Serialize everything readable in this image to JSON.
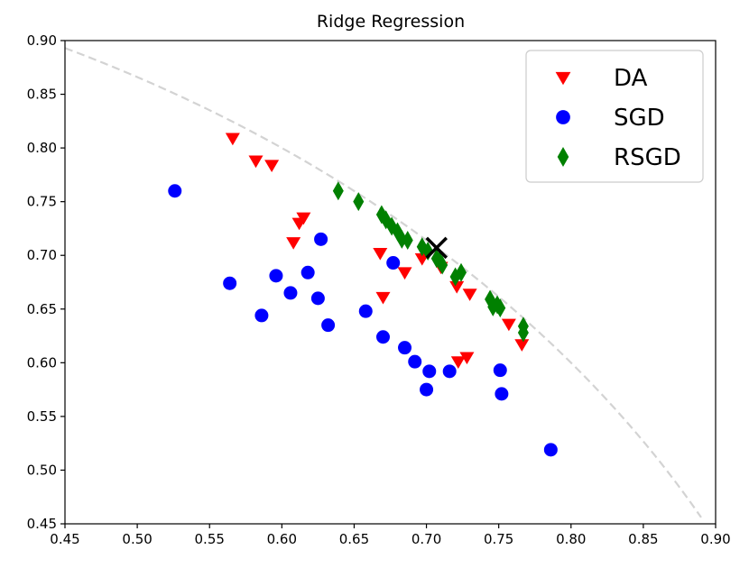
{
  "chart_data": {
    "type": "scatter",
    "title": "Ridge Regression",
    "xlabel": "",
    "ylabel": "",
    "xlim": [
      0.45,
      0.9
    ],
    "ylim": [
      0.45,
      0.9
    ],
    "x_ticks": [
      "0.45",
      "0.50",
      "0.55",
      "0.60",
      "0.65",
      "0.70",
      "0.75",
      "0.80",
      "0.85",
      "0.90"
    ],
    "y_ticks": [
      "0.45",
      "0.50",
      "0.55",
      "0.60",
      "0.65",
      "0.70",
      "0.75",
      "0.80",
      "0.85",
      "0.90"
    ],
    "x_tick_values": [
      0.45,
      0.5,
      0.55,
      0.6,
      0.65,
      0.7,
      0.75,
      0.8,
      0.85,
      0.9
    ],
    "y_tick_values": [
      0.45,
      0.5,
      0.55,
      0.6,
      0.65,
      0.7,
      0.75,
      0.8,
      0.85,
      0.9
    ],
    "legend_position": "top-right",
    "frontier_curve": {
      "name": "frontier",
      "style": "dashed",
      "color": "#d3d3d3",
      "radius": 1.0,
      "x_range": [
        0.45,
        0.89
      ]
    },
    "optimum_marker": {
      "name": "optimum",
      "marker": "x",
      "color": "#000000",
      "x": 0.707,
      "y": 0.707
    },
    "series": [
      {
        "name": "DA",
        "marker": "triangle-down",
        "color": "#ff0000",
        "points": [
          [
            0.566,
            0.809
          ],
          [
            0.582,
            0.788
          ],
          [
            0.593,
            0.784
          ],
          [
            0.615,
            0.735
          ],
          [
            0.612,
            0.73
          ],
          [
            0.608,
            0.712
          ],
          [
            0.668,
            0.702
          ],
          [
            0.67,
            0.661
          ],
          [
            0.685,
            0.684
          ],
          [
            0.697,
            0.697
          ],
          [
            0.71,
            0.689
          ],
          [
            0.721,
            0.671
          ],
          [
            0.73,
            0.664
          ],
          [
            0.722,
            0.601
          ],
          [
            0.728,
            0.605
          ],
          [
            0.757,
            0.636
          ],
          [
            0.766,
            0.617
          ]
        ]
      },
      {
        "name": "SGD",
        "marker": "circle",
        "color": "#0000ff",
        "points": [
          [
            0.526,
            0.76
          ],
          [
            0.564,
            0.674
          ],
          [
            0.586,
            0.644
          ],
          [
            0.596,
            0.681
          ],
          [
            0.606,
            0.665
          ],
          [
            0.618,
            0.684
          ],
          [
            0.625,
            0.66
          ],
          [
            0.627,
            0.715
          ],
          [
            0.632,
            0.635
          ],
          [
            0.658,
            0.648
          ],
          [
            0.67,
            0.624
          ],
          [
            0.677,
            0.693
          ],
          [
            0.685,
            0.614
          ],
          [
            0.692,
            0.601
          ],
          [
            0.7,
            0.575
          ],
          [
            0.702,
            0.592
          ],
          [
            0.716,
            0.592
          ],
          [
            0.751,
            0.593
          ],
          [
            0.752,
            0.571
          ],
          [
            0.786,
            0.519
          ]
        ]
      },
      {
        "name": "RSGD",
        "marker": "diamond",
        "color": "#008000",
        "points": [
          [
            0.639,
            0.76
          ],
          [
            0.653,
            0.75
          ],
          [
            0.669,
            0.738
          ],
          [
            0.672,
            0.733
          ],
          [
            0.676,
            0.727
          ],
          [
            0.68,
            0.722
          ],
          [
            0.683,
            0.715
          ],
          [
            0.687,
            0.714
          ],
          [
            0.697,
            0.708
          ],
          [
            0.701,
            0.704
          ],
          [
            0.707,
            0.697
          ],
          [
            0.709,
            0.695
          ],
          [
            0.711,
            0.691
          ],
          [
            0.72,
            0.68
          ],
          [
            0.724,
            0.684
          ],
          [
            0.744,
            0.659
          ],
          [
            0.746,
            0.652
          ],
          [
            0.749,
            0.654
          ],
          [
            0.751,
            0.651
          ],
          [
            0.767,
            0.634
          ],
          [
            0.767,
            0.628
          ]
        ]
      }
    ]
  }
}
